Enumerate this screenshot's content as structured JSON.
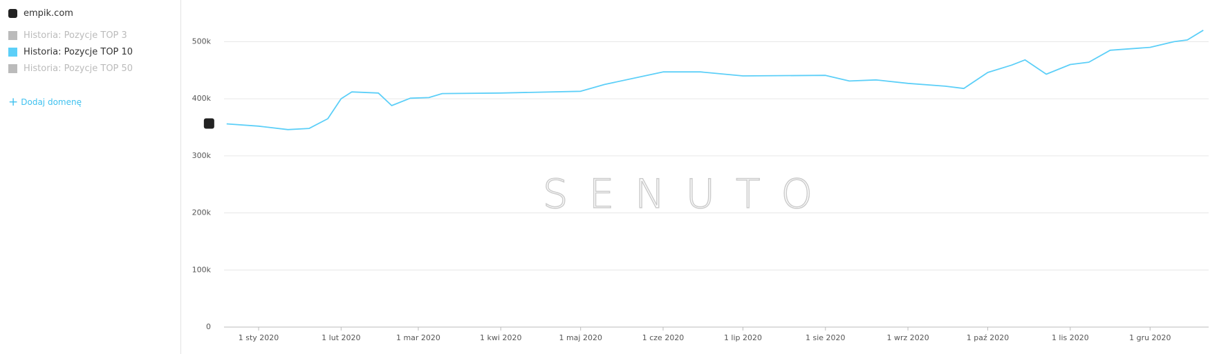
{
  "sidebar": {
    "domain": "empik.com",
    "inactive_series": [
      "Historia: Pozycje TOP 3",
      "Historia: Pozycje TOP 50"
    ],
    "add_button": "Dodaj domenę"
  },
  "chart_data": {
    "type": "line",
    "watermark": "SENUTO",
    "x": [
      "2019-12-20",
      "2020-01-01",
      "2020-01-12",
      "2020-01-20",
      "2020-01-27",
      "2020-02-01",
      "2020-02-05",
      "2020-02-15",
      "2020-02-20",
      "2020-02-27",
      "2020-03-05",
      "2020-03-10",
      "2020-04-01",
      "2020-05-01",
      "2020-05-10",
      "2020-06-01",
      "2020-06-15",
      "2020-07-01",
      "2020-08-01",
      "2020-08-10",
      "2020-08-20",
      "2020-09-01",
      "2020-09-15",
      "2020-09-22",
      "2020-10-01",
      "2020-10-10",
      "2020-10-15",
      "2020-10-23",
      "2020-11-01",
      "2020-11-08",
      "2020-11-16",
      "2020-12-01",
      "2020-12-10",
      "2020-12-15",
      "2020-12-21"
    ],
    "series": [
      {
        "name": "Historia: Pozycje TOP 10",
        "color": "#5ccff8",
        "values": [
          356000,
          352000,
          346000,
          348000,
          365000,
          400000,
          412000,
          410000,
          388000,
          401000,
          402000,
          409000,
          410000,
          413000,
          425000,
          447000,
          447000,
          440000,
          441000,
          431000,
          433000,
          427000,
          422000,
          418000,
          446000,
          459000,
          468000,
          443000,
          460000,
          464000,
          485000,
          490000,
          500000,
          503000,
          520000
        ]
      }
    ],
    "inactive_color": "#bbbbbb",
    "xlim": [
      "2019-12-19",
      "2020-12-23"
    ],
    "xticks": [
      {
        "value": "2020-01-01",
        "label": "1 sty 2020"
      },
      {
        "value": "2020-02-01",
        "label": "1 lut 2020"
      },
      {
        "value": "2020-03-01",
        "label": "1 mar 2020"
      },
      {
        "value": "2020-04-01",
        "label": "1 kwi 2020"
      },
      {
        "value": "2020-05-01",
        "label": "1 maj 2020"
      },
      {
        "value": "2020-06-01",
        "label": "1 cze 2020"
      },
      {
        "value": "2020-07-01",
        "label": "1 lip 2020"
      },
      {
        "value": "2020-08-01",
        "label": "1 sie 2020"
      },
      {
        "value": "2020-09-01",
        "label": "1 wrz 2020"
      },
      {
        "value": "2020-10-01",
        "label": "1 paź 2020"
      },
      {
        "value": "2020-11-01",
        "label": "1 lis 2020"
      },
      {
        "value": "2020-12-01",
        "label": "1 gru 2020"
      }
    ],
    "ylim": [
      0,
      550000
    ],
    "yticks": [
      0,
      {
        "value": 100000,
        "label": "100k"
      },
      {
        "value": 200000,
        "label": "200k"
      },
      {
        "value": 300000,
        "label": "300k"
      },
      {
        "value": 400000,
        "label": "400k"
      },
      {
        "value": 500000,
        "label": "500k"
      }
    ],
    "grid": true
  }
}
